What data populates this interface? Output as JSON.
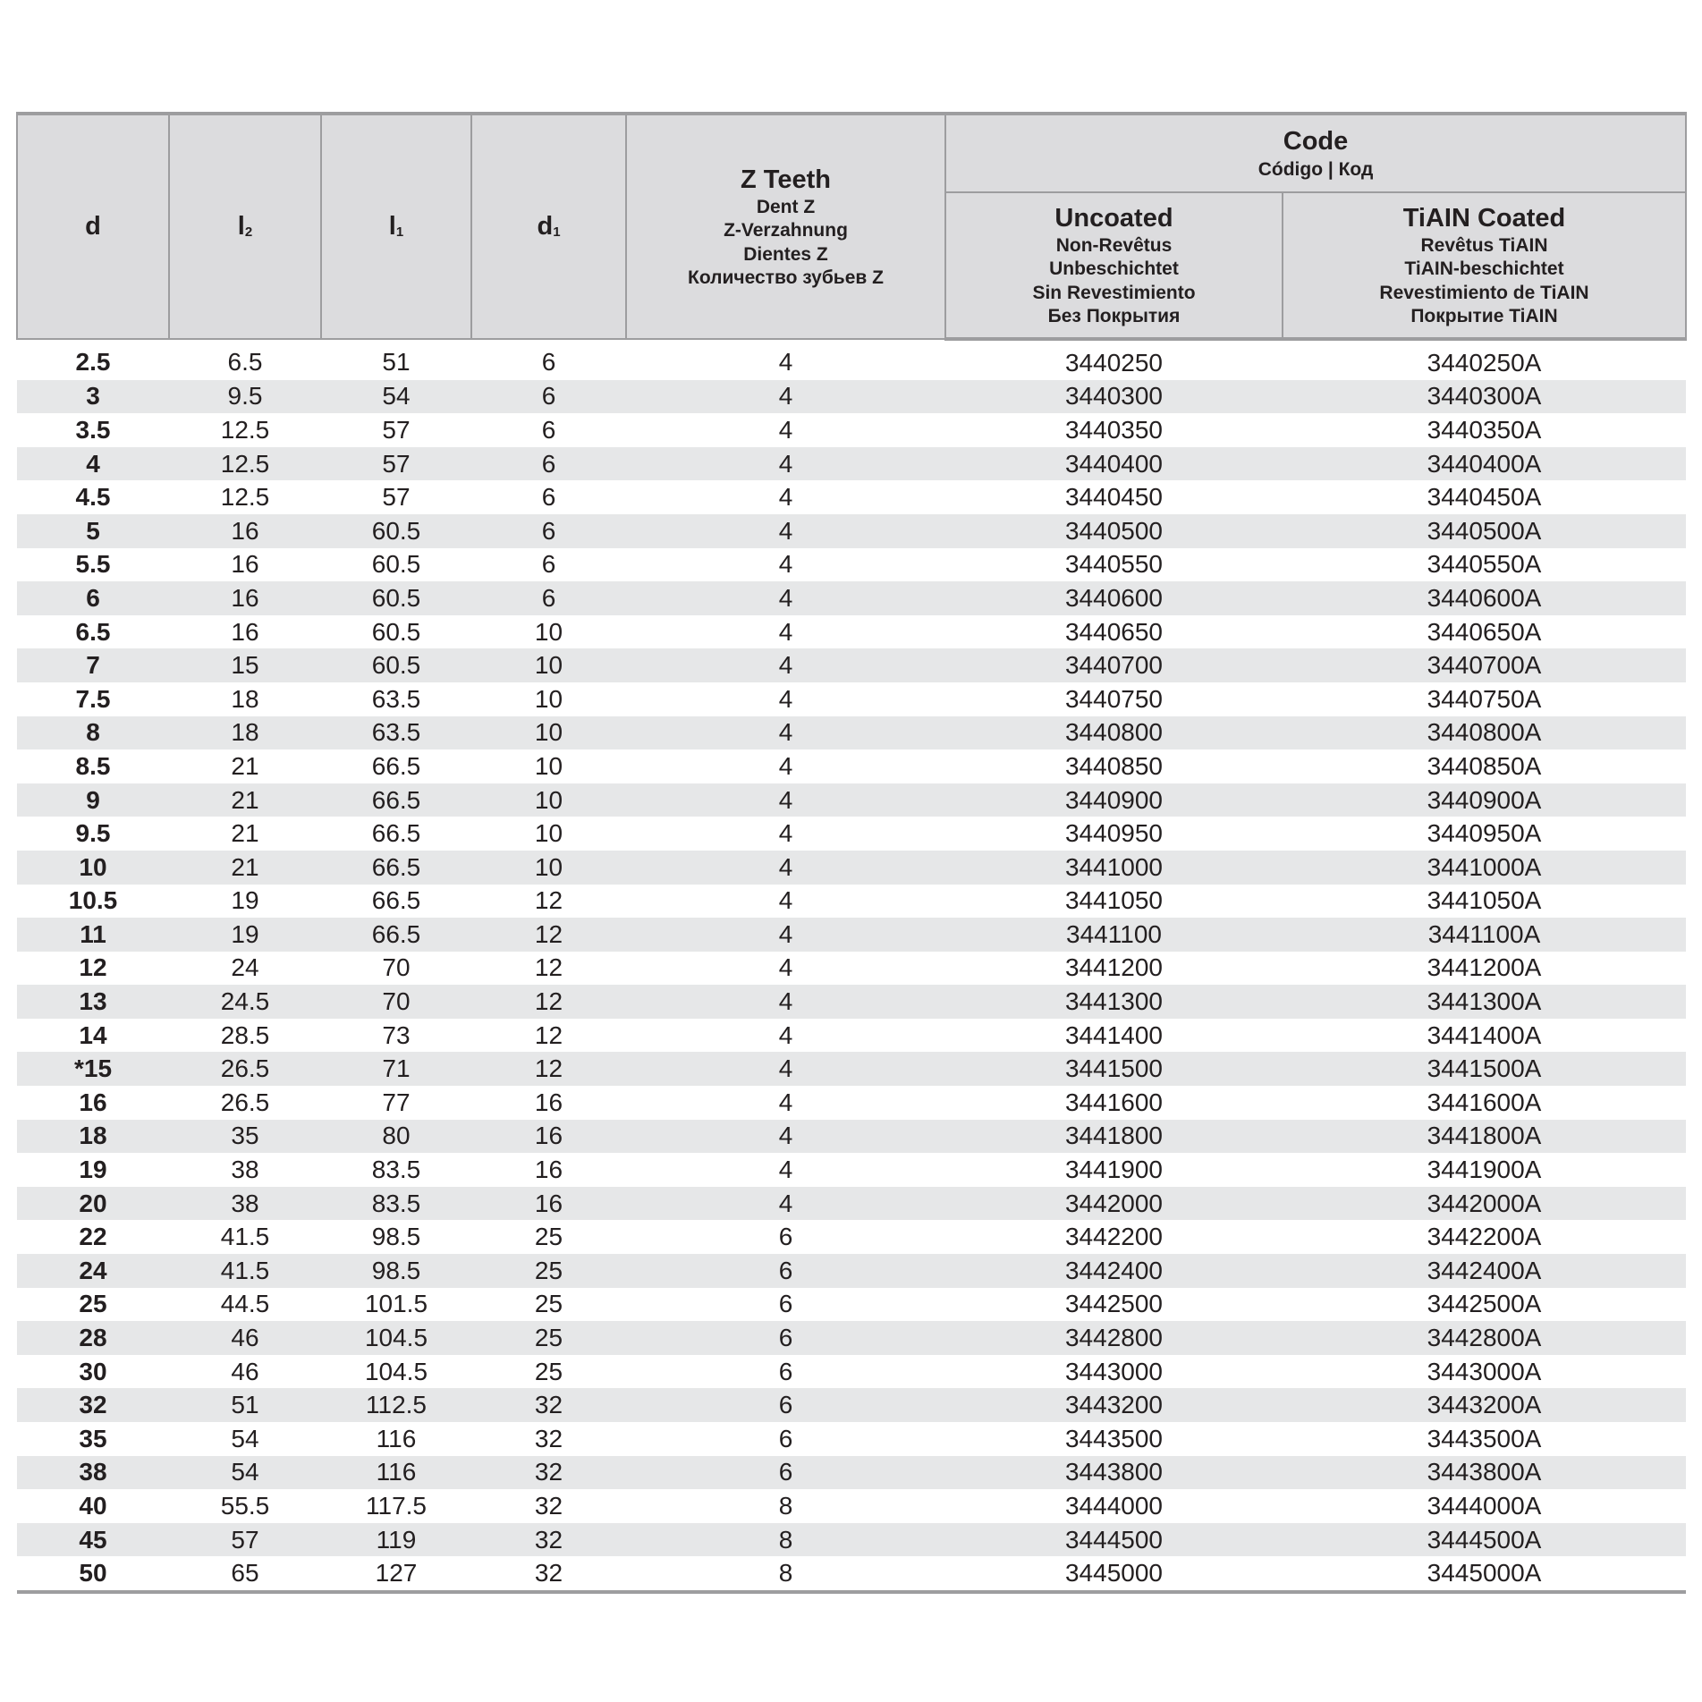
{
  "header": {
    "d": "d",
    "l2": {
      "base": "l",
      "sub": "2"
    },
    "l1": {
      "base": "l",
      "sub": "1"
    },
    "d1": {
      "base": "d",
      "sub": "1"
    },
    "z_teeth": {
      "title": "Z Teeth",
      "lines": [
        "Dent Z",
        "Z-Verzahnung",
        "Dientes Z",
        "Количество зубьев Z"
      ]
    },
    "code": {
      "title": "Code",
      "subtitle": "Código | Код"
    },
    "uncoated": {
      "title": "Uncoated",
      "lines": [
        "Non-Revêtus",
        "Unbeschichtet",
        "Sin Revestimiento",
        "Без Покрытия"
      ]
    },
    "coated": {
      "title": "TiAIN Coated",
      "lines": [
        "Revêtus TiAIN",
        "TiAIN-beschichtet",
        "Revestimiento de TiAIN",
        "Покрытие TiAIN"
      ]
    }
  },
  "rows": [
    [
      "2.5",
      "6.5",
      "51",
      "6",
      "4",
      "3440250",
      "3440250A"
    ],
    [
      "3",
      "9.5",
      "54",
      "6",
      "4",
      "3440300",
      "3440300A"
    ],
    [
      "3.5",
      "12.5",
      "57",
      "6",
      "4",
      "3440350",
      "3440350A"
    ],
    [
      "4",
      "12.5",
      "57",
      "6",
      "4",
      "3440400",
      "3440400A"
    ],
    [
      "4.5",
      "12.5",
      "57",
      "6",
      "4",
      "3440450",
      "3440450A"
    ],
    [
      "5",
      "16",
      "60.5",
      "6",
      "4",
      "3440500",
      "3440500A"
    ],
    [
      "5.5",
      "16",
      "60.5",
      "6",
      "4",
      "3440550",
      "3440550A"
    ],
    [
      "6",
      "16",
      "60.5",
      "6",
      "4",
      "3440600",
      "3440600A"
    ],
    [
      "6.5",
      "16",
      "60.5",
      "10",
      "4",
      "3440650",
      "3440650A"
    ],
    [
      "7",
      "15",
      "60.5",
      "10",
      "4",
      "3440700",
      "3440700A"
    ],
    [
      "7.5",
      "18",
      "63.5",
      "10",
      "4",
      "3440750",
      "3440750A"
    ],
    [
      "8",
      "18",
      "63.5",
      "10",
      "4",
      "3440800",
      "3440800A"
    ],
    [
      "8.5",
      "21",
      "66.5",
      "10",
      "4",
      "3440850",
      "3440850A"
    ],
    [
      "9",
      "21",
      "66.5",
      "10",
      "4",
      "3440900",
      "3440900A"
    ],
    [
      "9.5",
      "21",
      "66.5",
      "10",
      "4",
      "3440950",
      "3440950A"
    ],
    [
      "10",
      "21",
      "66.5",
      "10",
      "4",
      "3441000",
      "3441000A"
    ],
    [
      "10.5",
      "19",
      "66.5",
      "12",
      "4",
      "3441050",
      "3441050A"
    ],
    [
      "11",
      "19",
      "66.5",
      "12",
      "4",
      "3441100",
      "3441100A"
    ],
    [
      "12",
      "24",
      "70",
      "12",
      "4",
      "3441200",
      "3441200A"
    ],
    [
      "13",
      "24.5",
      "70",
      "12",
      "4",
      "3441300",
      "3441300A"
    ],
    [
      "14",
      "28.5",
      "73",
      "12",
      "4",
      "3441400",
      "3441400A"
    ],
    [
      "*15",
      "26.5",
      "71",
      "12",
      "4",
      "3441500",
      "3441500A"
    ],
    [
      "16",
      "26.5",
      "77",
      "16",
      "4",
      "3441600",
      "3441600A"
    ],
    [
      "18",
      "35",
      "80",
      "16",
      "4",
      "3441800",
      "3441800A"
    ],
    [
      "19",
      "38",
      "83.5",
      "16",
      "4",
      "3441900",
      "3441900A"
    ],
    [
      "20",
      "38",
      "83.5",
      "16",
      "4",
      "3442000",
      "3442000A"
    ],
    [
      "22",
      "41.5",
      "98.5",
      "25",
      "6",
      "3442200",
      "3442200A"
    ],
    [
      "24",
      "41.5",
      "98.5",
      "25",
      "6",
      "3442400",
      "3442400A"
    ],
    [
      "25",
      "44.5",
      "101.5",
      "25",
      "6",
      "3442500",
      "3442500A"
    ],
    [
      "28",
      "46",
      "104.5",
      "25",
      "6",
      "3442800",
      "3442800A"
    ],
    [
      "30",
      "46",
      "104.5",
      "25",
      "6",
      "3443000",
      "3443000A"
    ],
    [
      "32",
      "51",
      "112.5",
      "32",
      "6",
      "3443200",
      "3443200A"
    ],
    [
      "35",
      "54",
      "116",
      "32",
      "6",
      "3443500",
      "3443500A"
    ],
    [
      "38",
      "54",
      "116",
      "32",
      "6",
      "3443800",
      "3443800A"
    ],
    [
      "40",
      "55.5",
      "117.5",
      "32",
      "8",
      "3444000",
      "3444000A"
    ],
    [
      "45",
      "57",
      "119",
      "32",
      "8",
      "3444500",
      "3444500A"
    ],
    [
      "50",
      "65",
      "127",
      "32",
      "8",
      "3445000",
      "3445000A"
    ]
  ],
  "colors": {
    "header_bg": "#dcdcde",
    "stripe": "#e6e7e8",
    "rule": "#9d9d9f"
  }
}
